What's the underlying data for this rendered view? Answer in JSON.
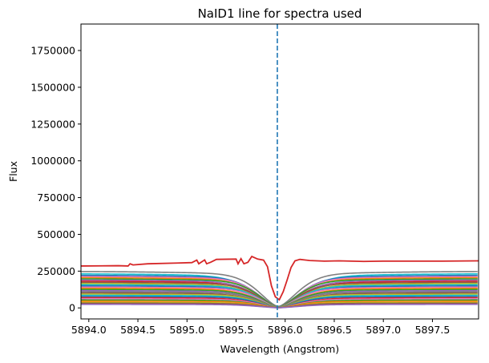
{
  "chart_data": {
    "type": "line",
    "title": "NaID1 line for spectra used",
    "xlabel": "Wavelength (Angstrom)",
    "ylabel": "Flux",
    "xlim": [
      5893.92,
      5897.97
    ],
    "ylim": [
      -75000,
      1930000
    ],
    "xticks": [
      5894.0,
      5894.5,
      5895.0,
      5895.5,
      5896.0,
      5896.5,
      5897.0,
      5897.5
    ],
    "xtick_labels": [
      "5894.0",
      "5894.5",
      "5895.0",
      "5895.5",
      "5896.0",
      "5896.5",
      "5897.0",
      "5897.5"
    ],
    "yticks": [
      0,
      250000,
      500000,
      750000,
      1000000,
      1250000,
      1500000,
      1750000
    ],
    "ytick_labels": [
      "0",
      "250000",
      "500000",
      "750000",
      "1000000",
      "1250000",
      "1500000",
      "1750000"
    ],
    "vline": {
      "x": 5895.92,
      "style": "dashed",
      "color": "#1f77b4"
    },
    "grid": false,
    "line_center": 5895.93,
    "profile_shape": "absorption",
    "series_colors": [
      "#1f77b4",
      "#ff7f0e",
      "#2ca02c",
      "#d62728",
      "#9467bd",
      "#8c564b",
      "#e377c2",
      "#7f7f7f",
      "#bcbd22",
      "#17becf"
    ],
    "highlight_series": {
      "color": "#d62728",
      "points": [
        [
          5893.92,
          285000
        ],
        [
          5894.3,
          287000
        ],
        [
          5894.4,
          285000
        ],
        [
          5894.42,
          300000
        ],
        [
          5894.45,
          292000
        ],
        [
          5894.6,
          300000
        ],
        [
          5894.9,
          305000
        ],
        [
          5895.05,
          308000
        ],
        [
          5895.1,
          325000
        ],
        [
          5895.12,
          300000
        ],
        [
          5895.18,
          326000
        ],
        [
          5895.2,
          300000
        ],
        [
          5895.24,
          310000
        ],
        [
          5895.3,
          330000
        ],
        [
          5895.5,
          332000
        ],
        [
          5895.52,
          300000
        ],
        [
          5895.55,
          335000
        ],
        [
          5895.58,
          300000
        ],
        [
          5895.62,
          310000
        ],
        [
          5895.66,
          350000
        ],
        [
          5895.72,
          332000
        ],
        [
          5895.78,
          325000
        ],
        [
          5895.82,
          280000
        ],
        [
          5895.86,
          150000
        ],
        [
          5895.9,
          75000
        ],
        [
          5895.94,
          55000
        ],
        [
          5895.98,
          110000
        ],
        [
          5896.02,
          190000
        ],
        [
          5896.06,
          275000
        ],
        [
          5896.1,
          320000
        ],
        [
          5896.15,
          330000
        ],
        [
          5896.25,
          322000
        ],
        [
          5896.4,
          318000
        ],
        [
          5896.55,
          320000
        ],
        [
          5896.8,
          316000
        ],
        [
          5897.0,
          318000
        ],
        [
          5897.3,
          318000
        ],
        [
          5897.6,
          318000
        ],
        [
          5897.97,
          320000
        ]
      ]
    },
    "series": [
      {
        "color": "#7f7f7f",
        "continuum": 248000,
        "floor": 10000,
        "width": 0.28
      },
      {
        "color": "#17becf",
        "continuum": 232000,
        "floor": 8000,
        "width": 0.33
      },
      {
        "color": "#1f77b4",
        "continuum": 222000,
        "floor": 6000,
        "width": 0.3
      },
      {
        "color": "#e377c2",
        "continuum": 214000,
        "floor": 5000,
        "width": 0.29
      },
      {
        "color": "#ff7f0e",
        "continuum": 206000,
        "floor": 6000,
        "width": 0.3
      },
      {
        "color": "#2ca02c",
        "continuum": 198000,
        "floor": 6000,
        "width": 0.28
      },
      {
        "color": "#9467bd",
        "continuum": 190000,
        "floor": 5000,
        "width": 0.3
      },
      {
        "color": "#d62728",
        "continuum": 182000,
        "floor": 5000,
        "width": 0.31
      },
      {
        "color": "#8c564b",
        "continuum": 174000,
        "floor": 5000,
        "width": 0.28
      },
      {
        "color": "#bcbd22",
        "continuum": 166000,
        "floor": 5000,
        "width": 0.3
      },
      {
        "color": "#17becf",
        "continuum": 158000,
        "floor": 4000,
        "width": 0.29
      },
      {
        "color": "#1f77b4",
        "continuum": 150000,
        "floor": 4000,
        "width": 0.3
      },
      {
        "color": "#e377c2",
        "continuum": 142000,
        "floor": 4000,
        "width": 0.28
      },
      {
        "color": "#ff7f0e",
        "continuum": 134000,
        "floor": 4000,
        "width": 0.3
      },
      {
        "color": "#2ca02c",
        "continuum": 126000,
        "floor": 4000,
        "width": 0.29
      },
      {
        "color": "#9467bd",
        "continuum": 118000,
        "floor": 3000,
        "width": 0.3
      },
      {
        "color": "#7f7f7f",
        "continuum": 110000,
        "floor": 3000,
        "width": 0.28
      },
      {
        "color": "#8c564b",
        "continuum": 102000,
        "floor": 3000,
        "width": 0.3
      },
      {
        "color": "#bcbd22",
        "continuum": 94000,
        "floor": 3000,
        "width": 0.29
      },
      {
        "color": "#17becf",
        "continuum": 86000,
        "floor": 3000,
        "width": 0.3
      },
      {
        "color": "#1f77b4",
        "continuum": 78000,
        "floor": 2000,
        "width": 0.28
      },
      {
        "color": "#d62728",
        "continuum": 70000,
        "floor": 2000,
        "width": 0.3
      },
      {
        "color": "#e377c2",
        "continuum": 62000,
        "floor": 2000,
        "width": 0.29
      },
      {
        "color": "#2ca02c",
        "continuum": 54000,
        "floor": 2000,
        "width": 0.3
      },
      {
        "color": "#ff7f0e",
        "continuum": 46000,
        "floor": 2000,
        "width": 0.28
      },
      {
        "color": "#bcbd22",
        "continuum": 38000,
        "floor": 1500,
        "width": 0.3
      },
      {
        "color": "#8c564b",
        "continuum": 32000,
        "floor": 1500,
        "width": 0.29
      },
      {
        "color": "#9467bd",
        "continuum": 24000,
        "floor": 1000,
        "width": 0.3
      }
    ]
  }
}
